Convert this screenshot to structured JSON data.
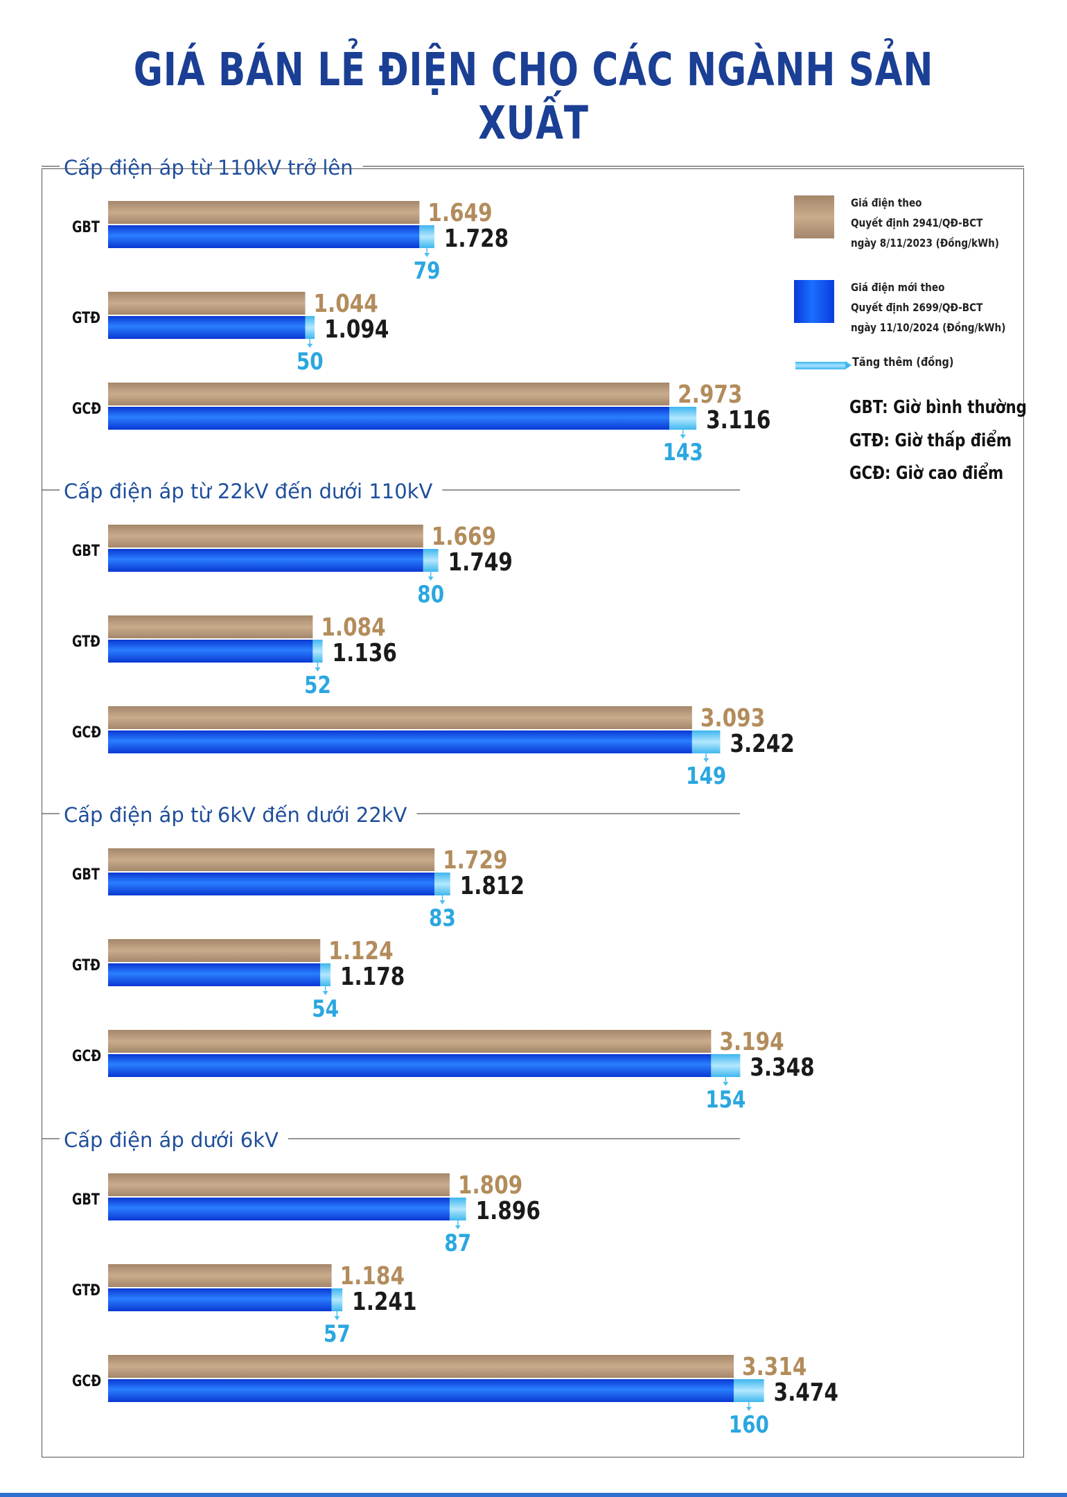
{
  "title": "GIÁ BÁN LẺ ĐIỆN CHO CÁC NGÀNH SẢN XUẤT",
  "colors": {
    "title": "#1a3f94",
    "section_title": "#1f4e9b",
    "old_price_label": "#b38c5c",
    "new_price_label": "#1a1a1a",
    "increase_label": "#2aa7e0",
    "old_bar": "#b0917a",
    "new_bar": "#1257f0",
    "increase_bar": "#4cc0f2"
  },
  "legend": {
    "old": [
      "Giá điện theo",
      "Quyết định 2941/QĐ-BCT",
      "ngày 8/11/2023 (Đồng/kWh)"
    ],
    "new": [
      "Giá điện mới theo",
      "Quyết định 2699/QĐ-BCT",
      "ngày 11/10/2024 (Đồng/kWh)"
    ],
    "increase": "Tăng thêm (đồng)"
  },
  "abbreviations": [
    "GBT: Giờ bình thường",
    "GTĐ: Giờ thấp điểm",
    "GCĐ: Giờ cao điểm"
  ],
  "chart_data": {
    "type": "bar",
    "orientation": "horizontal",
    "units": "Đồng/kWh",
    "series_names": [
      "Giá điện theo Quyết định 2941/QĐ-BCT ngày 8/11/2023 (Đồng/kWh)",
      "Giá điện mới theo Quyết định 2699/QĐ-BCT ngày 11/10/2024 (Đồng/kWh)",
      "Tăng thêm (đồng)"
    ],
    "groups": [
      {
        "title": "Cấp điện áp từ 110kV trở lên",
        "rows": [
          {
            "category": "GBT",
            "old": 1649,
            "new": 1728,
            "increase": 79,
            "old_label": "1.649",
            "new_label": "1.728",
            "increase_label": "79"
          },
          {
            "category": "GTĐ",
            "old": 1044,
            "new": 1094,
            "increase": 50,
            "old_label": "1.044",
            "new_label": "1.094",
            "increase_label": "50"
          },
          {
            "category": "GCĐ",
            "old": 2973,
            "new": 3116,
            "increase": 143,
            "old_label": "2.973",
            "new_label": "3.116",
            "increase_label": "143"
          }
        ]
      },
      {
        "title": "Cấp điện áp từ 22kV đến dưới 110kV",
        "rows": [
          {
            "category": "GBT",
            "old": 1669,
            "new": 1749,
            "increase": 80,
            "old_label": "1.669",
            "new_label": "1.749",
            "increase_label": "80"
          },
          {
            "category": "GTĐ",
            "old": 1084,
            "new": 1136,
            "increase": 52,
            "old_label": "1.084",
            "new_label": "1.136",
            "increase_label": "52"
          },
          {
            "category": "GCĐ",
            "old": 3093,
            "new": 3242,
            "increase": 149,
            "old_label": "3.093",
            "new_label": "3.242",
            "increase_label": "149"
          }
        ]
      },
      {
        "title": "Cấp điện áp từ 6kV đến dưới 22kV",
        "rows": [
          {
            "category": "GBT",
            "old": 1729,
            "new": 1812,
            "increase": 83,
            "old_label": "1.729",
            "new_label": "1.812",
            "increase_label": "83"
          },
          {
            "category": "GTĐ",
            "old": 1124,
            "new": 1178,
            "increase": 54,
            "old_label": "1.124",
            "new_label": "1.178",
            "increase_label": "54"
          },
          {
            "category": "GCĐ",
            "old": 3194,
            "new": 3348,
            "increase": 154,
            "old_label": "3.194",
            "new_label": "3.348",
            "increase_label": "154"
          }
        ]
      },
      {
        "title": "Cấp điện áp dưới 6kV",
        "rows": [
          {
            "category": "GBT",
            "old": 1809,
            "new": 1896,
            "increase": 87,
            "old_label": "1.809",
            "new_label": "1.896",
            "increase_label": "87"
          },
          {
            "category": "GTĐ",
            "old": 1184,
            "new": 1241,
            "increase": 57,
            "old_label": "1.184",
            "new_label": "1.241",
            "increase_label": "57"
          },
          {
            "category": "GCĐ",
            "old": 3314,
            "new": 3474,
            "increase": 160,
            "old_label": "3.314",
            "new_label": "3.474",
            "increase_label": "160"
          }
        ]
      }
    ]
  }
}
